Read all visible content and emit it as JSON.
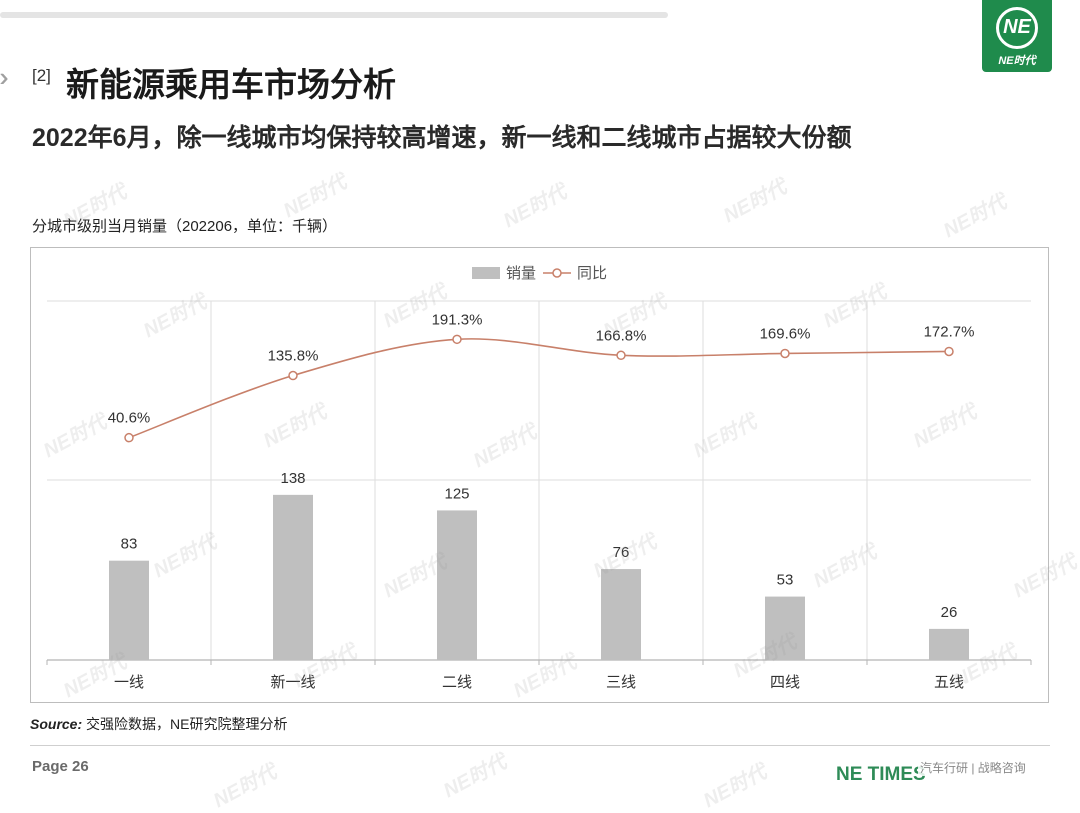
{
  "header": {
    "section_number": "[2]",
    "title": "新能源乘用车市场分析",
    "subtitle": "2022年6月，除一线城市均保持较高增速，新一线和二线城市占据较大份额"
  },
  "logo": {
    "mark": "NE",
    "text": "NE时代"
  },
  "chart_title": "分城市级别当月销量（202206，单位：千辆）",
  "chart_data": {
    "type": "bar",
    "title": "分城市级别当月销量（202206，单位：千辆）",
    "categories": [
      "一线",
      "新一线",
      "二线",
      "三线",
      "四线",
      "五线"
    ],
    "legend_position": "top-center",
    "grid": true,
    "series": [
      {
        "name": "销量",
        "type": "bar",
        "axis": "left",
        "values": [
          83,
          138,
          125,
          76,
          53,
          26
        ],
        "color": "#bfbfbf",
        "labels": [
          "83",
          "138",
          "125",
          "76",
          "53",
          "26"
        ]
      },
      {
        "name": "同比",
        "type": "line",
        "axis": "right",
        "values": [
          40.6,
          135.8,
          191.3,
          166.8,
          169.6,
          172.7
        ],
        "color": "#c8806a",
        "labels": [
          "40.6%",
          "135.8%",
          "191.3%",
          "166.8%",
          "169.6%",
          "172.7%"
        ]
      }
    ],
    "ylim_left": [
      0,
      300
    ],
    "ylim_right": [
      -300,
      250
    ]
  },
  "source": {
    "label": "Source:",
    "text": "交强险数据，NE研究院整理分析"
  },
  "footer": {
    "page": "Page 26",
    "brand": "NE TIMES",
    "credit": "汽车行研 | 战略咨询"
  },
  "colors": {
    "brand_green": "#1f8b4c",
    "bar": "#bfbfbf",
    "line": "#c8806a"
  },
  "watermark": "NE时代"
}
